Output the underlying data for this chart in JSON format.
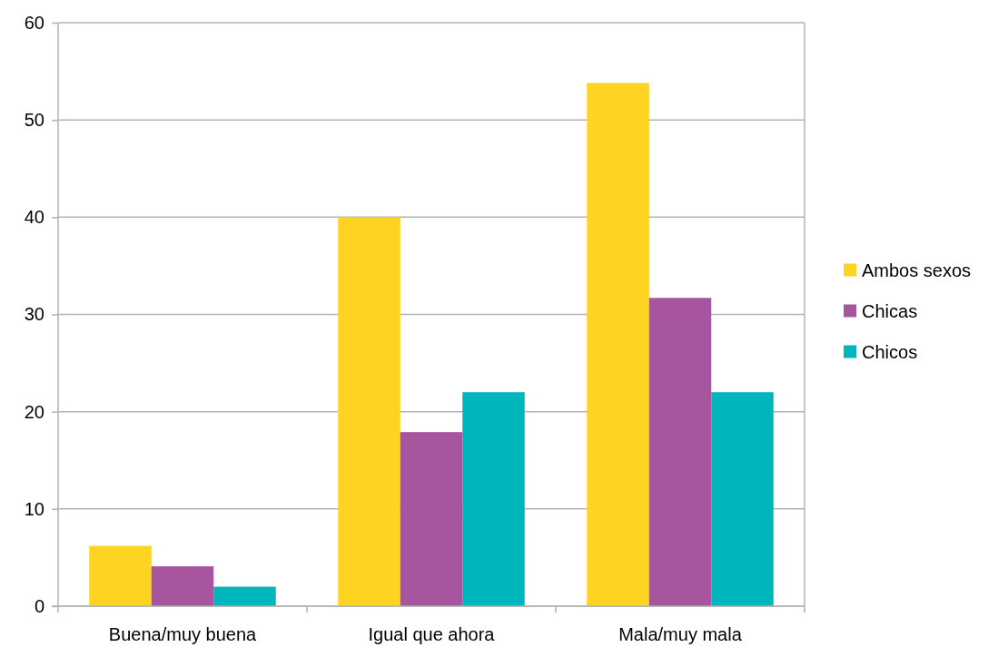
{
  "chart_data": {
    "type": "bar",
    "categories": [
      "Buena/muy buena",
      "Igual que ahora",
      "Mala/muy mala"
    ],
    "series": [
      {
        "name": "Ambos sexos",
        "color": "#fed322",
        "values": [
          6.2,
          40.0,
          53.8
        ]
      },
      {
        "name": "Chicas",
        "color": "#a855a0",
        "values": [
          4.1,
          17.9,
          31.7
        ]
      },
      {
        "name": "Chicos",
        "color": "#00b5bb",
        "values": [
          2.0,
          22.0,
          22.0
        ]
      }
    ],
    "ylim": [
      0,
      60
    ],
    "yticks": [
      0,
      10,
      20,
      30,
      40,
      50,
      60
    ],
    "grid": "y",
    "legend": "right"
  }
}
